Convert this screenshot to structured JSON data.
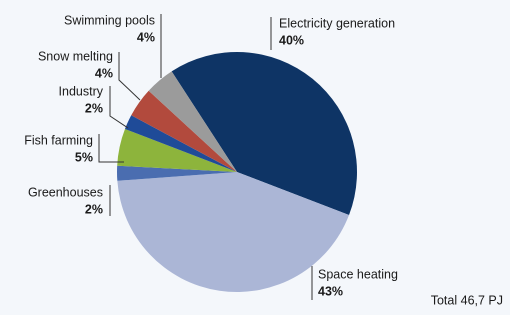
{
  "chart_data": {
    "type": "pie",
    "categories": [
      "Electricity generation",
      "Space heating",
      "Greenhouses",
      "Fish farming",
      "Industry",
      "Snow melting",
      "Swimming pools"
    ],
    "values": [
      40,
      43,
      2,
      5,
      2,
      4,
      4
    ],
    "value_labels": [
      "40%",
      "43%",
      "2%",
      "5%",
      "2%",
      "4%",
      "4%"
    ],
    "colors": [
      "#0e3465",
      "#abb6d6",
      "#4a6db0",
      "#8db43c",
      "#1f4b98",
      "#b24a3d",
      "#9b9b9b"
    ],
    "annotation": "Total 46,7 PJ"
  }
}
